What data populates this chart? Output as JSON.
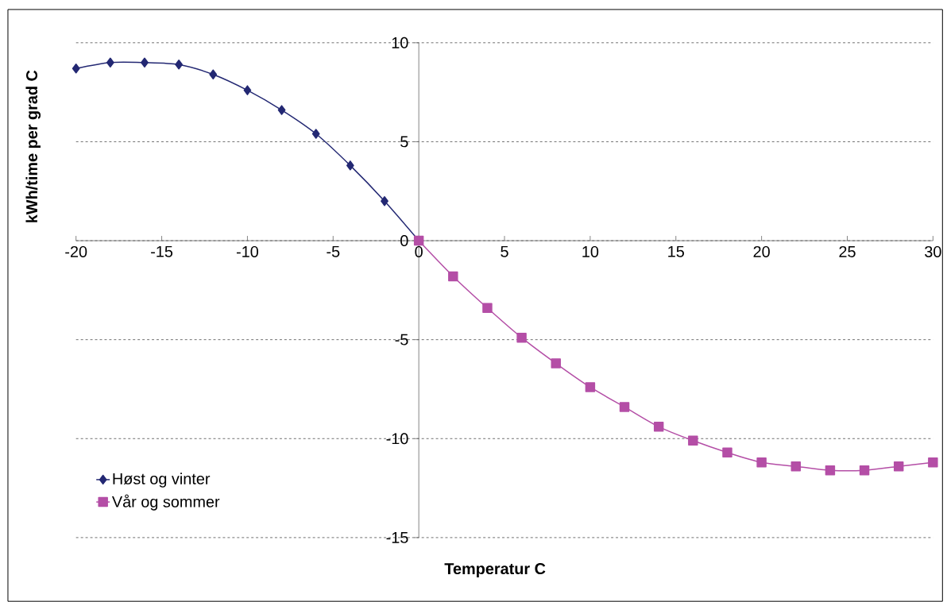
{
  "chart_data": {
    "type": "line",
    "xlabel": "Temperatur C",
    "ylabel": "kWh/time per grad C",
    "xlim": [
      -20,
      30
    ],
    "xticks": [
      -20,
      -15,
      -10,
      -5,
      0,
      5,
      10,
      15,
      20,
      25,
      30
    ],
    "ylim": [
      -15,
      10
    ],
    "yticks": [
      -15,
      -10,
      -5,
      0,
      5,
      10
    ],
    "grid": "y",
    "legend": "bottom left",
    "line_style": "solid",
    "series": [
      {
        "name": "Høst og vinter",
        "color": "#232873",
        "marker": "diamond",
        "x": [
          -20,
          -18,
          -16,
          -14,
          -12,
          -10,
          -8,
          -6,
          -4,
          -2,
          0
        ],
        "values": [
          8.7,
          9.0,
          9.0,
          8.9,
          8.4,
          7.6,
          6.6,
          5.4,
          3.8,
          2.0,
          0
        ]
      },
      {
        "name": "Vår og sommer",
        "color": "#b44ea6",
        "marker": "square",
        "x": [
          0,
          2,
          4,
          6,
          8,
          10,
          12,
          14,
          16,
          18,
          20,
          22,
          24,
          26,
          28,
          30
        ],
        "values": [
          0,
          -1.8,
          -3.4,
          -4.9,
          -6.2,
          -7.4,
          -8.4,
          -9.4,
          -10.1,
          -10.7,
          -11.2,
          -11.4,
          -11.6,
          -11.6,
          -11.4,
          -11.2
        ]
      }
    ]
  }
}
